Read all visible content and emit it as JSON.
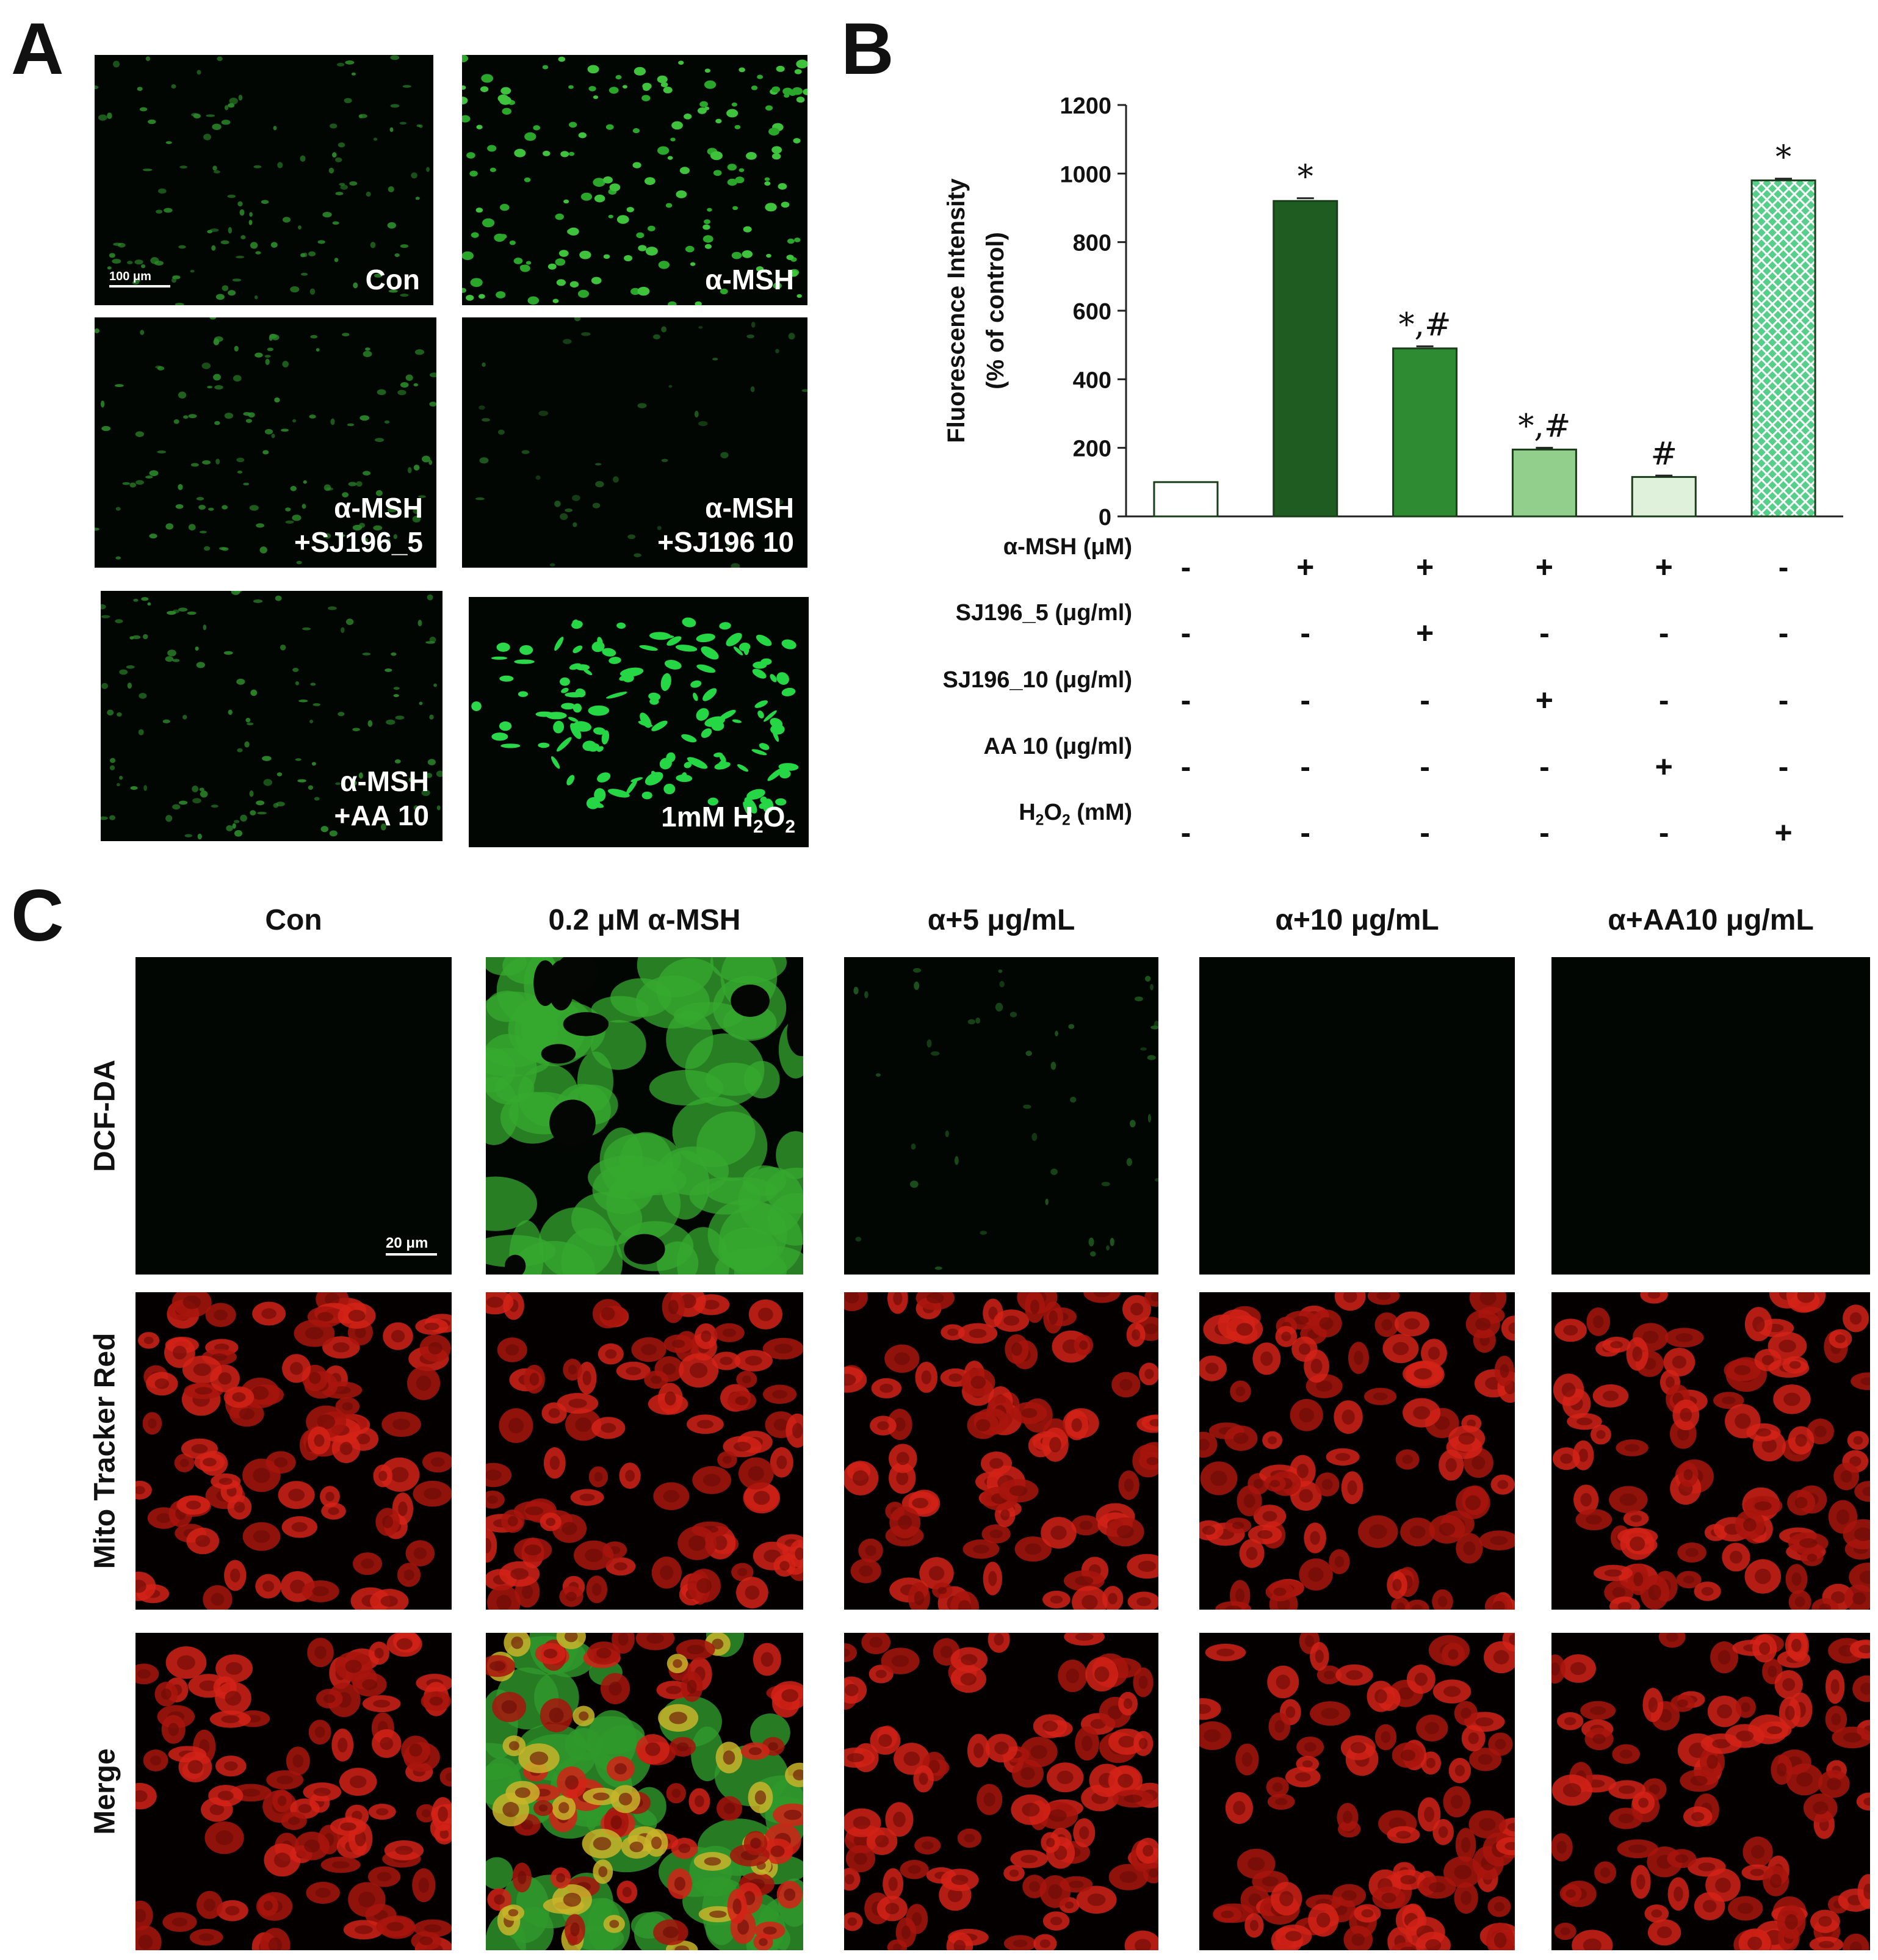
{
  "panels": {
    "a": "A",
    "b": "B",
    "c": "C"
  },
  "panel_a": {
    "scale_bar": "100 μm",
    "images": [
      {
        "label_html": "Con",
        "stain": "green-sparse"
      },
      {
        "label_html": "α-MSH",
        "stain": "green-bright"
      },
      {
        "label_html": "α-MSH<br>+SJ196_5",
        "stain": "green-sparse"
      },
      {
        "label_html": "α-MSH<br>+SJ196 10",
        "stain": "green-faint"
      },
      {
        "label_html": "α-MSH<br>+AA 10",
        "stain": "green-sparse"
      },
      {
        "label_html": "1mM H<sub>2</sub>O<sub>2</sub>",
        "stain": "green-cluster"
      }
    ]
  },
  "chart_data": {
    "type": "bar",
    "ylabel_lines": [
      "Fluorescence Intensity",
      "(% of control)"
    ],
    "ylim": [
      0,
      1200
    ],
    "yticks": [
      0,
      200,
      400,
      600,
      800,
      1000,
      1200
    ],
    "values": [
      100,
      920,
      490,
      195,
      115,
      980
    ],
    "errors": [
      0,
      8,
      6,
      5,
      4,
      5
    ],
    "bar_colors": [
      "#ffffff",
      "#1f5c22",
      "#2e8b32",
      "#93cf8c",
      "#dff1db",
      "#56cf8a"
    ],
    "patterns": [
      "none",
      "none",
      "none",
      "none",
      "none",
      "crosshatch"
    ],
    "annotations": [
      "",
      "*",
      "*,#",
      "*,#",
      "#",
      "*"
    ],
    "grid": false,
    "conditions": [
      {
        "label": "α-MSH  (μM)",
        "signs": [
          "-",
          "+",
          "+",
          "+",
          "+",
          "-"
        ]
      },
      {
        "label": "SJ196_5  (μg/ml)",
        "signs": [
          "-",
          "-",
          "+",
          "-",
          "-",
          "-"
        ]
      },
      {
        "label": "SJ196_10  (μg/ml)",
        "signs": [
          "-",
          "-",
          "-",
          "+",
          "-",
          "-"
        ]
      },
      {
        "label": "AA 10  (μg/ml)",
        "signs": [
          "-",
          "-",
          "-",
          "-",
          "+",
          "-"
        ]
      },
      {
        "label_html": "H<sub>2</sub>O<sub>2</sub>  (mM)",
        "signs": [
          "-",
          "-",
          "-",
          "-",
          "-",
          "+"
        ]
      }
    ]
  },
  "panel_c": {
    "columns": [
      "Con",
      "0.2 μM α-MSH",
      "α+5 μg/mL",
      "α+10 μg/mL",
      "α+AA10 μg/mL"
    ],
    "rows": [
      "DCF-DA",
      "Mito Tracker Red",
      "Merge"
    ],
    "scale_bar": "20 μm",
    "stains": [
      [
        "dark",
        "green-mesh",
        "green-faint",
        "dark",
        "dark"
      ],
      [
        "red",
        "red",
        "red",
        "red",
        "red"
      ],
      [
        "red",
        "merge",
        "red",
        "red",
        "red"
      ]
    ]
  }
}
